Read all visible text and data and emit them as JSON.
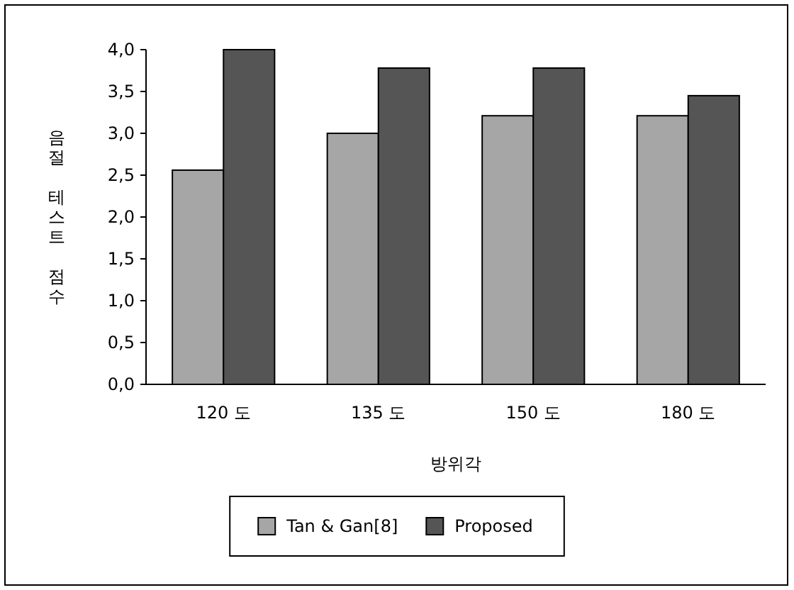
{
  "chart_data": {
    "type": "bar",
    "xlabel": "방위각",
    "ylabel": "음절 테스트 점수",
    "categories": [
      "120 도",
      "135 도",
      "150 도",
      "180 도"
    ],
    "series": [
      {
        "name": "Tan & Gan[8]",
        "color": "#a6a6a6",
        "values": [
          2.56,
          3.0,
          3.21,
          3.21
        ]
      },
      {
        "name": "Proposed",
        "color": "#555555",
        "values": [
          4.0,
          3.78,
          3.78,
          3.45
        ]
      }
    ],
    "ylim": [
      0,
      4
    ],
    "yticks": [
      {
        "value": 0,
        "label": "0,0"
      },
      {
        "value": 0.5,
        "label": "0,5"
      },
      {
        "value": 1,
        "label": "1,0"
      },
      {
        "value": 1.5,
        "label": "1,5"
      },
      {
        "value": 2,
        "label": "2,0"
      },
      {
        "value": 2.5,
        "label": "2,5"
      },
      {
        "value": 3,
        "label": "3,0"
      },
      {
        "value": 3.5,
        "label": "3,5"
      },
      {
        "value": 4,
        "label": "4,0"
      }
    ],
    "legend": "bottom"
  }
}
